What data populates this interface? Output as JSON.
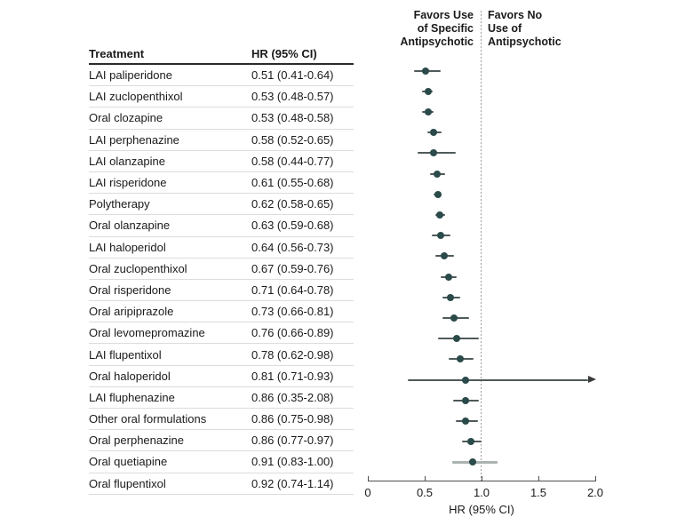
{
  "colors": {
    "marker": "#2b4a4a",
    "ci_line": "#4f5a5a",
    "ci_line_light": "#abb2b2",
    "arrow": "#3a3a3a",
    "axis": "#4d4d4d",
    "text": "#1a1a1a",
    "separator": "#dcdcdc",
    "reference_dotted": "#9e9e9e"
  },
  "table": {
    "col_treatment": "Treatment",
    "col_hr": "HR (95% CI)"
  },
  "plot": {
    "favors_left": "Favors Use\nof Specific\nAntipsychotic",
    "favors_right": "Favors No\nUse of\nAntipsychotic",
    "tick_labels": [
      "0",
      "0.5",
      "1.0",
      "1.5",
      "2.0"
    ]
  },
  "chart_data": {
    "type": "forest",
    "xlabel": "HR (95% CI)",
    "xlim": [
      0,
      2.0
    ],
    "x_ticks": [
      0,
      0.5,
      1.0,
      1.5,
      2.0
    ],
    "reference_line": 1.0,
    "columns": [
      "Treatment",
      "HR (95% CI)"
    ],
    "rows": [
      {
        "treatment": "LAI paliperidone",
        "hr_label": "0.51 (0.41-0.64)",
        "hr": 0.51,
        "lo": 0.41,
        "hi": 0.64
      },
      {
        "treatment": "LAI zuclopenthixol",
        "hr_label": "0.53 (0.48-0.57)",
        "hr": 0.53,
        "lo": 0.48,
        "hi": 0.57
      },
      {
        "treatment": "Oral clozapine",
        "hr_label": "0.53 (0.48-0.58)",
        "hr": 0.53,
        "lo": 0.48,
        "hi": 0.58
      },
      {
        "treatment": "LAI perphenazine",
        "hr_label": "0.58 (0.52-0.65)",
        "hr": 0.58,
        "lo": 0.52,
        "hi": 0.65
      },
      {
        "treatment": "LAI olanzapine",
        "hr_label": "0.58 (0.44-0.77)",
        "hr": 0.58,
        "lo": 0.44,
        "hi": 0.77
      },
      {
        "treatment": "LAI risperidone",
        "hr_label": "0.61 (0.55-0.68)",
        "hr": 0.61,
        "lo": 0.55,
        "hi": 0.68
      },
      {
        "treatment": "Polytherapy",
        "hr_label": "0.62 (0.58-0.65)",
        "hr": 0.62,
        "lo": 0.58,
        "hi": 0.65
      },
      {
        "treatment": "Oral olanzapine",
        "hr_label": "0.63 (0.59-0.68)",
        "hr": 0.63,
        "lo": 0.59,
        "hi": 0.68
      },
      {
        "treatment": "LAI haloperidol",
        "hr_label": "0.64 (0.56-0.73)",
        "hr": 0.64,
        "lo": 0.56,
        "hi": 0.73
      },
      {
        "treatment": "Oral zuclopenthixol",
        "hr_label": "0.67 (0.59-0.76)",
        "hr": 0.67,
        "lo": 0.59,
        "hi": 0.76
      },
      {
        "treatment": "Oral risperidone",
        "hr_label": "0.71 (0.64-0.78)",
        "hr": 0.71,
        "lo": 0.64,
        "hi": 0.78
      },
      {
        "treatment": "Oral aripiprazole",
        "hr_label": "0.73 (0.66-0.81)",
        "hr": 0.73,
        "lo": 0.66,
        "hi": 0.81
      },
      {
        "treatment": "Oral levomepromazine",
        "hr_label": "0.76 (0.66-0.89)",
        "hr": 0.76,
        "lo": 0.66,
        "hi": 0.89
      },
      {
        "treatment": "LAI flupentixol",
        "hr_label": "0.78 (0.62-0.98)",
        "hr": 0.78,
        "lo": 0.62,
        "hi": 0.98
      },
      {
        "treatment": "Oral haloperidol",
        "hr_label": "0.81 (0.71-0.93)",
        "hr": 0.81,
        "lo": 0.71,
        "hi": 0.93
      },
      {
        "treatment": "LAI fluphenazine",
        "hr_label": "0.86 (0.35-2.08)",
        "hr": 0.86,
        "lo": 0.35,
        "hi": 2.08,
        "arrow_right": true
      },
      {
        "treatment": "Other oral formulations",
        "hr_label": "0.86 (0.75-0.98)",
        "hr": 0.86,
        "lo": 0.75,
        "hi": 0.98
      },
      {
        "treatment": "Oral perphenazine",
        "hr_label": "0.86 (0.77-0.97)",
        "hr": 0.86,
        "lo": 0.77,
        "hi": 0.97
      },
      {
        "treatment": "Oral quetiapine",
        "hr_label": "0.91 (0.83-1.00)",
        "hr": 0.91,
        "lo": 0.83,
        "hi": 1.0
      },
      {
        "treatment": "Oral flupentixol",
        "hr_label": "0.92 (0.74-1.14)",
        "hr": 0.92,
        "lo": 0.74,
        "hi": 1.14,
        "light_line": true
      }
    ]
  }
}
